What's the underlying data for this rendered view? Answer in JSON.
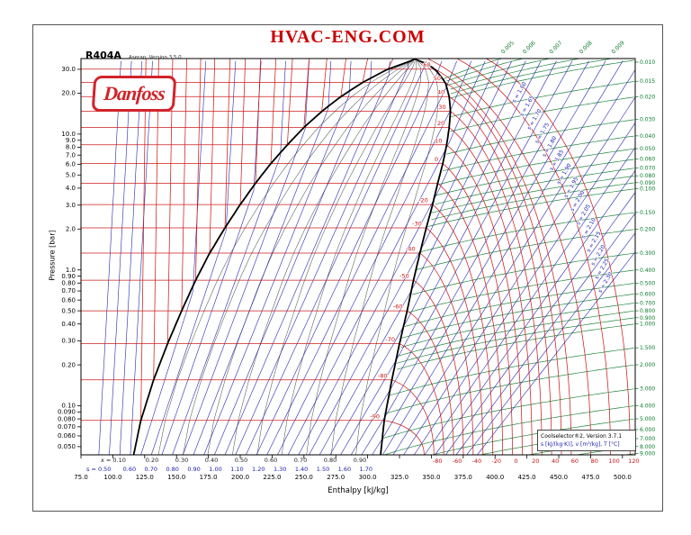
{
  "header": {
    "site_title": "HVAC-ENG.COM",
    "refrigerant": "R404A",
    "subtitle": "Aserap, Version 3.5.0",
    "logo_text": "Danfoss"
  },
  "info_box": {
    "line1": "Coolselector®2, Version 3.7.1",
    "line2": "s [kJ/(kg·K)], v [m³/kg], T [°C]"
  },
  "chart_data": {
    "type": "ph-diagram-log-pressure-enthalpy",
    "refrigerant": "R404A",
    "title": "HVAC-ENG.COM",
    "xlabel": "Enthalpy [kJ/kg]",
    "ylabel": "Pressure [bar]",
    "x_ticks": [
      "75.0",
      "100.0",
      "125.0",
      "150.0",
      "175.0",
      "200.0",
      "225.0",
      "250.0",
      "275.0",
      "300.0",
      "325.0",
      "350.0",
      "375.0",
      "400.0",
      "425.0",
      "450.0",
      "475.0",
      "500.0"
    ],
    "y_ticks": [
      "30.0",
      "20.0",
      "10.0",
      "9.0",
      "8.0",
      "7.0",
      "6.0",
      "5.0",
      "4.0",
      "3.0",
      "2.0",
      "1.0",
      "0.90",
      "0.80",
      "0.70",
      "0.60",
      "0.50",
      "0.40",
      "0.30",
      "0.20",
      "0.10",
      "0.090",
      "0.080",
      "0.070",
      "0.060",
      "0.050"
    ],
    "x_range": [
      75,
      510
    ],
    "p_range": [
      0.0435,
      36
    ],
    "saturation": [
      [
        -95,
        0.042,
        116,
        310
      ],
      [
        -90,
        0.078,
        122,
        313
      ],
      [
        -80,
        0.155,
        132,
        319
      ],
      [
        -70,
        0.287,
        143,
        325
      ],
      [
        -60,
        0.5,
        154,
        331
      ],
      [
        -50,
        0.84,
        165,
        336
      ],
      [
        -40,
        1.33,
        176,
        341
      ],
      [
        -30,
        2.04,
        188,
        346
      ],
      [
        -20,
        3.03,
        200,
        351
      ],
      [
        -10,
        4.35,
        212,
        355
      ],
      [
        0,
        6.07,
        224,
        359
      ],
      [
        10,
        8.34,
        237,
        362
      ],
      [
        20,
        11.2,
        250,
        364
      ],
      [
        30,
        14.7,
        264,
        365
      ],
      [
        40,
        18.9,
        279,
        364
      ],
      [
        50,
        24.0,
        296,
        361
      ],
      [
        60,
        30.1,
        316,
        353
      ],
      [
        65,
        33.5,
        330,
        345
      ],
      [
        68,
        35.6,
        337,
        337
      ]
    ],
    "isotherms_c": [
      -90,
      -80,
      -70,
      -60,
      -50,
      -40,
      -30,
      -20,
      -10,
      0,
      10,
      20,
      30,
      40,
      50,
      60
    ],
    "isotherm_dome_labels": [
      -90,
      -80,
      -70,
      -60,
      -50,
      -40,
      -30,
      -20,
      0,
      10,
      20,
      30,
      40,
      50,
      60
    ],
    "isotherms_supercritical": [
      [
        80,
        347
      ],
      [
        100,
        370
      ],
      [
        120,
        393
      ]
    ],
    "bottom_temp_labels": [
      -80,
      -60,
      -40,
      -20,
      0,
      20,
      40,
      60,
      80,
      100,
      120
    ],
    "quality_labels": [
      "0.10",
      "0.20",
      "0.30",
      "0.40",
      "0.50",
      "0.60",
      "0.70",
      "0.80",
      "0.90"
    ],
    "entropy_bottom_labels": [
      "0.50",
      "0.60",
      "0.70",
      "0.80",
      "0.90",
      "1.00",
      "1.10",
      "1.20",
      "1.30",
      "1.40",
      "1.50",
      "1.60",
      "1.70"
    ],
    "entropy_lines": {
      "min": 0.5,
      "max": 2.3,
      "step": 0.05
    },
    "entropy_superheat_labels": [
      1.6,
      1.65,
      1.7,
      1.75,
      1.8,
      1.85,
      1.9,
      1.95,
      2.0,
      2.05,
      2.1,
      2.15,
      2.2,
      2.25,
      2.3
    ],
    "isochores": [
      0.005,
      0.006,
      0.007,
      0.008,
      0.009,
      0.01,
      0.015,
      0.02,
      0.03,
      0.04,
      0.05,
      0.06,
      0.07,
      0.08,
      0.09,
      0.1,
      0.15,
      0.2,
      0.3,
      0.4,
      0.5,
      0.6,
      0.7,
      0.8,
      0.9,
      1.0,
      1.5,
      2.0,
      3.0,
      4.0,
      5.0,
      6.0,
      7.0,
      8.0,
      9.0
    ],
    "colors": {
      "isotherm": "#cc1111",
      "isentrope": "#2020b0",
      "isochore": "#0a7a2a",
      "quality": "#444444",
      "saturation": "#000000",
      "title": "#cc0000",
      "logo": "#d2232a"
    }
  }
}
